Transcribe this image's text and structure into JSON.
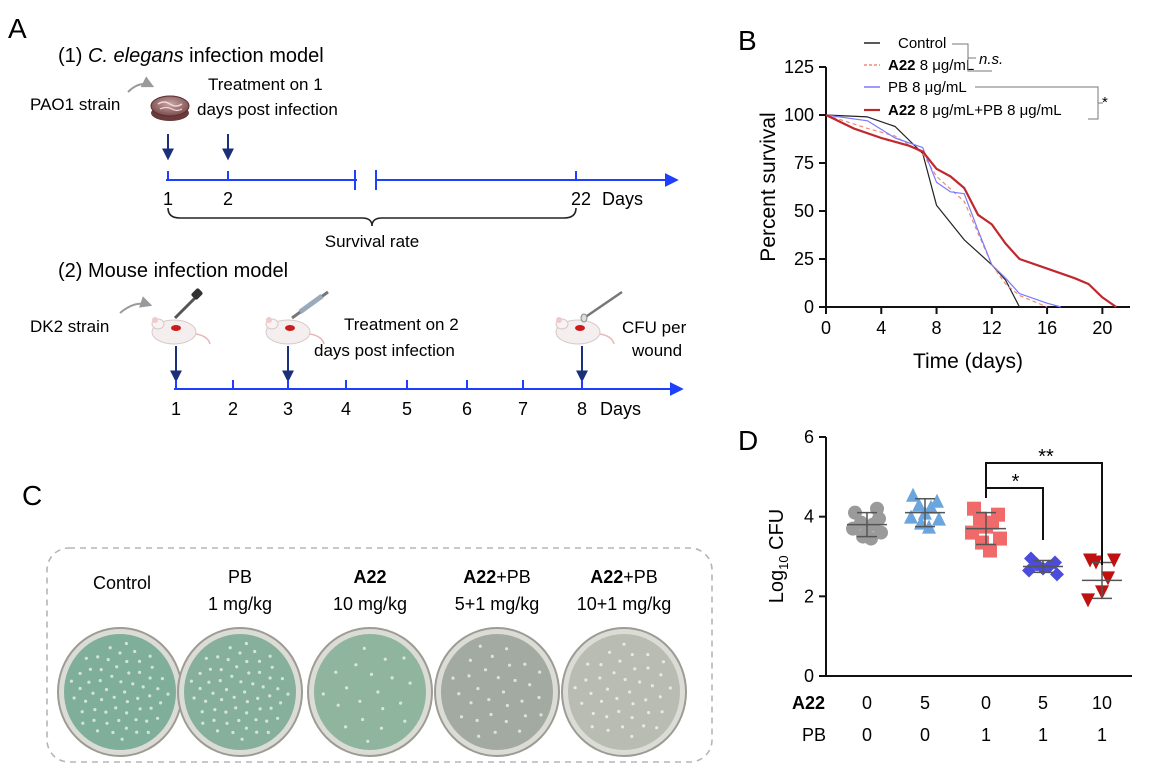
{
  "panels": {
    "A": {
      "letter": "A",
      "model1": {
        "heading": "(1) C. elegans infection model",
        "heading_prefix": "(1) ",
        "heading_italic": "C. elegans",
        "heading_suffix": " infection model",
        "strain": "PAO1 strain",
        "treatment_line1": "Treatment on 1",
        "treatment_line2": "days post infection",
        "ticks": [
          "1",
          "2",
          "22"
        ],
        "unit": "Days",
        "bracket_label": "Survival rate"
      },
      "model2": {
        "heading": "(2) Mouse infection model",
        "strain": "DK2 strain",
        "treatment_line1": "Treatment on 2",
        "treatment_line2": "days post infection",
        "endpoint_line1": "CFU per",
        "endpoint_line2": "wound",
        "ticks": [
          "1",
          "2",
          "3",
          "4",
          "5",
          "6",
          "7",
          "8"
        ],
        "unit": "Days"
      }
    },
    "C": {
      "letter": "C",
      "plates": [
        {
          "bold": "",
          "line1": "Control",
          "line2": "",
          "color": "#7fae9a"
        },
        {
          "bold": "",
          "line1": "PB",
          "line2": "1 mg/kg",
          "color": "#86b09c"
        },
        {
          "bold": "A22",
          "line1": "",
          "line2": "10 mg/kg",
          "color": "#8fb59e"
        },
        {
          "bold": "A22",
          "line1": "+PB",
          "line2": "5+1 mg/kg",
          "color": "#a3aaa2"
        },
        {
          "bold": "A22",
          "line1": "+PB",
          "line2": "10+1 mg/kg",
          "color": "#b9bcb2"
        }
      ]
    }
  },
  "chart_data": [
    {
      "panel": "B",
      "type": "line",
      "xlabel": "Time (days)",
      "ylabel": "Percent survival",
      "xlim": [
        0,
        22
      ],
      "ylim": [
        0,
        125
      ],
      "xticks": [
        "0",
        "4",
        "8",
        "12",
        "16",
        "20"
      ],
      "yticks": [
        "0",
        "25",
        "50",
        "75",
        "100",
        "125"
      ],
      "series": [
        {
          "name": "Control",
          "name_bold": "",
          "color": "#222222",
          "dash": "solid",
          "width": 1.2,
          "points": [
            [
              0,
              100
            ],
            [
              3,
              99
            ],
            [
              5,
              94
            ],
            [
              6,
              87
            ],
            [
              7,
              80
            ],
            [
              8,
              53
            ],
            [
              10,
              35
            ],
            [
              12,
              22
            ],
            [
              13,
              14
            ],
            [
              14,
              0
            ]
          ]
        },
        {
          "name": "8 μg/mL",
          "name_bold": "A22",
          "color": "#f08878",
          "dash": "dash",
          "width": 1.2,
          "points": [
            [
              0,
              100
            ],
            [
              3,
              93
            ],
            [
              5,
              89
            ],
            [
              7,
              80
            ],
            [
              8,
              68
            ],
            [
              10,
              55
            ],
            [
              12,
              22
            ],
            [
              13,
              12
            ],
            [
              14,
              6
            ],
            [
              15,
              3
            ],
            [
              16,
              0
            ]
          ]
        },
        {
          "name": "PB 8 μg/mL",
          "name_bold": "",
          "color": "#7a7aff",
          "dash": "solid",
          "width": 1.2,
          "points": [
            [
              0,
              100
            ],
            [
              3,
              97
            ],
            [
              5,
              88
            ],
            [
              7,
              83
            ],
            [
              8,
              65
            ],
            [
              9,
              60
            ],
            [
              10,
              59
            ],
            [
              11,
              40
            ],
            [
              12,
              22
            ],
            [
              13,
              15
            ],
            [
              14,
              7
            ],
            [
              16,
              2
            ],
            [
              17,
              0
            ]
          ]
        },
        {
          "name": "8 μg/mL+PB 8 μg/mL",
          "name_bold": "A22",
          "color": "#c0282d",
          "dash": "solid",
          "width": 2.2,
          "points": [
            [
              0,
              100
            ],
            [
              2,
              93
            ],
            [
              4,
              88
            ],
            [
              6,
              84
            ],
            [
              7,
              81
            ],
            [
              8,
              72
            ],
            [
              9,
              68
            ],
            [
              10,
              62
            ],
            [
              11,
              48
            ],
            [
              12,
              43
            ],
            [
              13,
              33
            ],
            [
              14,
              25
            ],
            [
              16,
              20
            ],
            [
              18,
              15
            ],
            [
              19,
              12
            ],
            [
              20,
              5
            ],
            [
              21,
              0
            ]
          ]
        }
      ],
      "annotations": [
        "n.s.",
        "*"
      ]
    },
    {
      "panel": "D",
      "type": "scatter",
      "ylabel_main": "Log",
      "ylabel_sub": "10",
      "ylabel_tail": " CFU",
      "ylim": [
        0,
        6
      ],
      "yticks": [
        "0",
        "2",
        "4",
        "6"
      ],
      "row_labels": [
        "A22",
        "PB"
      ],
      "groups": [
        {
          "a22": "0",
          "pb": "0",
          "color": "#9a9a9a",
          "marker": "circle",
          "values": [
            4.1,
            3.95,
            3.85,
            3.8,
            3.75,
            3.7,
            3.6,
            3.5,
            3.45,
            4.2
          ],
          "mean": 3.8,
          "sd": 0.3
        },
        {
          "a22": "5",
          "pb": "0",
          "color": "#6aa5de",
          "marker": "triangle-up",
          "values": [
            4.55,
            4.4,
            4.3,
            4.25,
            4.1,
            4.0,
            3.95,
            3.85,
            3.75
          ],
          "mean": 4.1,
          "sd": 0.35
        },
        {
          "a22": "0",
          "pb": "1",
          "color": "#f06a6a",
          "marker": "square",
          "values": [
            4.2,
            4.05,
            3.95,
            3.85,
            3.75,
            3.6,
            3.45,
            3.35,
            3.15
          ],
          "mean": 3.7,
          "sd": 0.4
        },
        {
          "a22": "5",
          "pb": "1",
          "color": "#4b4bdc",
          "marker": "diamond",
          "values": [
            2.95,
            2.85,
            2.8,
            2.75,
            2.7,
            2.65,
            2.55
          ],
          "mean": 2.75,
          "sd": 0.15
        },
        {
          "a22": "10",
          "pb": "1",
          "color": "#c01010",
          "marker": "triangle-down",
          "values": [
            2.9,
            2.9,
            2.85,
            2.45,
            2.1,
            1.9
          ],
          "mean": 2.4,
          "sd": 0.45
        }
      ],
      "significance": [
        "*",
        "**"
      ]
    }
  ]
}
